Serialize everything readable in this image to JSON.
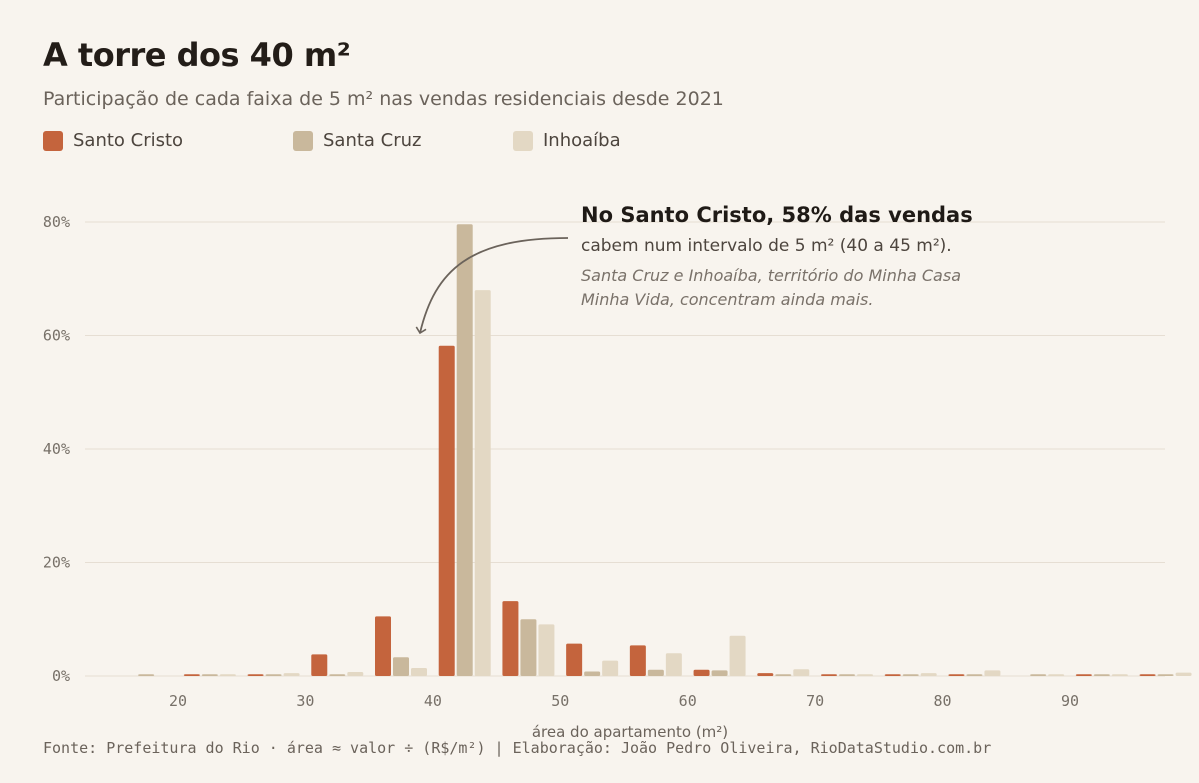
{
  "header": {
    "title": "A torre dos 40 m²",
    "subtitle": "Participação de cada faixa de 5 m² nas vendas residenciais desde 2021"
  },
  "legend": [
    {
      "label": "Santo Cristo",
      "color": "#c4643d"
    },
    {
      "label": "Santa Cruz",
      "color": "#c9b89c"
    },
    {
      "label": "Inhoaíba",
      "color": "#e3d8c4"
    }
  ],
  "annotation": {
    "headline": "No Santo Cristo, 58% das vendas",
    "body": "cabem num intervalo de 5 m² (40 a 45 m²).",
    "note_line1": "Santa Cruz e Inhoaíba, território do Minha Casa",
    "note_line2": "Minha Vida, concentram ainda mais."
  },
  "footer": {
    "source": "Fonte: Prefeitura do Rio · área ≈ valor ÷ (R$/m²) | Elaboração: João Pedro Oliveira, RioDataStudio.com.br"
  },
  "chart_data": {
    "type": "bar",
    "xlabel": "área do apartamento (m²)",
    "ylabel": "",
    "x_ticks": [
      20,
      30,
      40,
      50,
      60,
      70,
      80,
      90
    ],
    "y_ticks": [
      0,
      20,
      40,
      60,
      80
    ],
    "y_tick_labels": [
      "0%",
      "20%",
      "40%",
      "60%",
      "80%"
    ],
    "ylim": [
      0,
      80
    ],
    "grid": "horizontal",
    "categories": [
      15,
      20,
      25,
      30,
      35,
      40,
      45,
      50,
      55,
      60,
      65,
      70,
      75,
      80,
      85,
      90,
      95
    ],
    "series": [
      {
        "name": "Santo Cristo",
        "color": "#c4643d",
        "values": [
          0,
          0.3,
          0.3,
          3.8,
          10.5,
          58.2,
          13.2,
          5.7,
          5.4,
          1.1,
          0.5,
          0.3,
          0.3,
          0.3,
          0,
          0.3,
          0.3
        ]
      },
      {
        "name": "Santa Cruz",
        "color": "#c9b89c",
        "values": [
          0.3,
          0.3,
          0.3,
          0.3,
          3.3,
          79.6,
          10.0,
          0.8,
          1.1,
          1.0,
          0.3,
          0.3,
          0.3,
          0.3,
          0.3,
          0.3,
          0.3
        ]
      },
      {
        "name": "Inhoaíba",
        "color": "#e3d8c4",
        "values": [
          0,
          0.3,
          0.5,
          0.7,
          1.4,
          68.0,
          9.1,
          2.7,
          4.0,
          7.1,
          1.2,
          0.3,
          0.5,
          1.0,
          0.3,
          0.3,
          0.6
        ]
      }
    ]
  }
}
